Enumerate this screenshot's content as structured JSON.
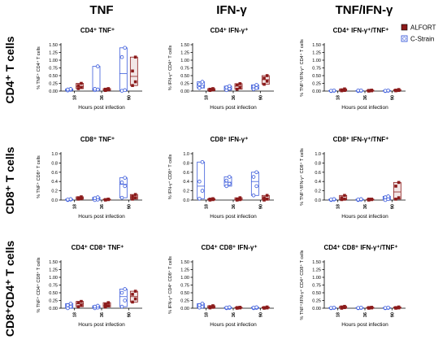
{
  "column_headers": [
    "TNF",
    "IFN-γ",
    "TNF/IFN-γ"
  ],
  "row_headers": [
    "CD4⁺ T cells",
    "CD8⁺ T cells",
    "CD8⁺CD4⁺ T cells"
  ],
  "legend": [
    {
      "label": "ALFORT",
      "color": "#8b1a1a"
    },
    {
      "label": "C-Strain",
      "color": "#3b5bdb"
    }
  ],
  "chart_data": [
    {
      "type": "box",
      "title": "CD4⁺ TNF⁺",
      "ylabel": "% TNF⁺ CD4⁺ T cells",
      "xlabel": "Hours post infection",
      "categories": [
        "18",
        "36",
        "90"
      ],
      "ylim": [
        0,
        1.5
      ],
      "yticks": [
        "0.00",
        "0.25",
        "0.50",
        "0.75",
        "1.00",
        "1.25",
        "1.50"
      ],
      "series": [
        {
          "name": "C-Strain",
          "values": [
            [
              0.02,
              0.04,
              0.05,
              0.07
            ],
            [
              0.03,
              0.05,
              0.07,
              0.8
            ],
            [
              0.01,
              0.03,
              1.1,
              1.4
            ]
          ]
        },
        {
          "name": "ALFORT",
          "values": [
            [
              0.08,
              0.12,
              0.18,
              0.25
            ],
            [
              0.02,
              0.04,
              0.06,
              0.08
            ],
            [
              0.18,
              0.3,
              0.65,
              1.1
            ]
          ]
        }
      ]
    },
    {
      "type": "box",
      "title": "CD4⁺ IFN-γ⁺",
      "ylabel": "% IFN-γ⁺ CD4⁺ T cells",
      "xlabel": "Hours post infection",
      "categories": [
        "18",
        "36",
        "90"
      ],
      "ylim": [
        0,
        1.5
      ],
      "yticks": [
        "0.00",
        "0.25",
        "0.50",
        "0.75",
        "1.00",
        "1.25",
        "1.50"
      ],
      "series": [
        {
          "name": "C-Strain",
          "values": [
            [
              0.1,
              0.15,
              0.22,
              0.3
            ],
            [
              0.03,
              0.08,
              0.12,
              0.16
            ],
            [
              0.06,
              0.1,
              0.15,
              0.2
            ]
          ]
        },
        {
          "name": "ALFORT",
          "values": [
            [
              0.02,
              0.04,
              0.06,
              0.08
            ],
            [
              0.06,
              0.12,
              0.2,
              0.24
            ],
            [
              0.22,
              0.32,
              0.42,
              0.5
            ]
          ]
        }
      ]
    },
    {
      "type": "box",
      "title": "CD4⁺ IFN-γ⁺/TNF⁺",
      "ylabel": "% TNF⁺/IFN-γ⁺ CD4⁺ T cells",
      "xlabel": "Hours post infection",
      "categories": [
        "18",
        "36",
        "90"
      ],
      "ylim": [
        0,
        1.5
      ],
      "yticks": [
        "0.00",
        "0.25",
        "0.50",
        "0.75",
        "1.00",
        "1.25",
        "1.50"
      ],
      "series": [
        {
          "name": "C-Strain",
          "values": [
            [
              0.0,
              0.01,
              0.01,
              0.02
            ],
            [
              0.0,
              0.01,
              0.02,
              0.02
            ],
            [
              0.0,
              0.01,
              0.01,
              0.02
            ]
          ]
        },
        {
          "name": "ALFORT",
          "values": [
            [
              0.01,
              0.02,
              0.04,
              0.07
            ],
            [
              0.0,
              0.01,
              0.02,
              0.03
            ],
            [
              0.01,
              0.02,
              0.03,
              0.05
            ]
          ]
        }
      ]
    },
    {
      "type": "box",
      "title": "CD8⁺ TNF⁺",
      "ylabel": "% TNF⁺ CD8⁺ T cells",
      "xlabel": "Hours post infection",
      "categories": [
        "18",
        "36",
        "90"
      ],
      "ylim": [
        0,
        1.0
      ],
      "yticks": [
        "0.0",
        "0.2",
        "0.4",
        "0.6",
        "0.8",
        "1.0"
      ],
      "series": [
        {
          "name": "C-Strain",
          "values": [
            [
              0.0,
              0.01,
              0.01,
              0.02
            ],
            [
              0.0,
              0.01,
              0.04,
              0.06
            ],
            [
              0.05,
              0.3,
              0.38,
              0.48
            ]
          ]
        },
        {
          "name": "ALFORT",
          "values": [
            [
              0.02,
              0.03,
              0.05,
              0.07
            ],
            [
              0.0,
              0.01,
              0.01,
              0.02
            ],
            [
              0.02,
              0.05,
              0.08,
              0.12
            ]
          ]
        }
      ]
    },
    {
      "type": "box",
      "title": "CD8⁺ IFN-γ⁺",
      "ylabel": "% IFN-γ⁺ CD8⁺ T cells",
      "xlabel": "Hours post infection",
      "categories": [
        "18",
        "36",
        "90"
      ],
      "ylim": [
        0,
        1.0
      ],
      "yticks": [
        "0.0",
        "0.2",
        "0.4",
        "0.6",
        "0.8",
        "1.0"
      ],
      "series": [
        {
          "name": "C-Strain",
          "values": [
            [
              0.03,
              0.2,
              0.4,
              0.82
            ],
            [
              0.3,
              0.35,
              0.42,
              0.5
            ],
            [
              0.1,
              0.3,
              0.5,
              0.6
            ]
          ]
        },
        {
          "name": "ALFORT",
          "values": [
            [
              0.0,
              0.01,
              0.02,
              0.03
            ],
            [
              0.0,
              0.01,
              0.02,
              0.05
            ],
            [
              0.0,
              0.02,
              0.05,
              0.1
            ]
          ]
        }
      ]
    },
    {
      "type": "box",
      "title": "CD8⁺ IFN-γ⁺/TNF⁺",
      "ylabel": "% TNF⁺/IFN-γ⁺ CD8⁺ T cells",
      "xlabel": "Hours post infection",
      "categories": [
        "18",
        "36",
        "90"
      ],
      "ylim": [
        0,
        1.0
      ],
      "yticks": [
        "0.0",
        "0.2",
        "0.4",
        "0.6",
        "0.8",
        "1.0"
      ],
      "series": [
        {
          "name": "C-Strain",
          "values": [
            [
              0.0,
              0.01,
              0.01,
              0.02
            ],
            [
              0.0,
              0.01,
              0.01,
              0.02
            ],
            [
              0.0,
              0.02,
              0.06,
              0.08
            ]
          ]
        },
        {
          "name": "ALFORT",
          "values": [
            [
              0.01,
              0.02,
              0.05,
              0.1
            ],
            [
              0.0,
              0.01,
              0.02,
              0.02
            ],
            [
              0.02,
              0.05,
              0.3,
              0.38
            ]
          ]
        }
      ]
    },
    {
      "type": "box",
      "title": "CD4⁺ CD8⁺ TNF⁺",
      "ylabel": "% TNF⁺ CD4⁺ CD8⁺ T cells",
      "xlabel": "Hours post infection",
      "categories": [
        "18",
        "36",
        "90"
      ],
      "ylim": [
        0,
        1.5
      ],
      "yticks": [
        "0.00",
        "0.25",
        "0.50",
        "0.75",
        "1.00",
        "1.25",
        "1.50"
      ],
      "series": [
        {
          "name": "C-Strain",
          "values": [
            [
              0.0,
              0.05,
              0.1,
              0.15
            ],
            [
              0.0,
              0.02,
              0.05,
              0.08
            ],
            [
              0.05,
              0.25,
              0.5,
              0.62
            ]
          ]
        },
        {
          "name": "ALFORT",
          "values": [
            [
              0.05,
              0.1,
              0.18,
              0.22
            ],
            [
              0.04,
              0.08,
              0.12,
              0.18
            ],
            [
              0.2,
              0.3,
              0.45,
              0.55
            ]
          ]
        }
      ]
    },
    {
      "type": "box",
      "title": "CD4⁺ CD8⁺ IFN-γ⁺",
      "ylabel": "% IFN-γ⁺ CD4⁺ CD8⁺ T cells",
      "xlabel": "Hours post infection",
      "categories": [
        "18",
        "36",
        "90"
      ],
      "ylim": [
        0,
        1.5
      ],
      "yticks": [
        "0.00",
        "0.25",
        "0.50",
        "0.75",
        "1.00",
        "1.25",
        "1.50"
      ],
      "series": [
        {
          "name": "C-Strain",
          "values": [
            [
              0.02,
              0.05,
              0.1,
              0.15
            ],
            [
              0.0,
              0.01,
              0.02,
              0.03
            ],
            [
              0.0,
              0.01,
              0.02,
              0.03
            ]
          ]
        },
        {
          "name": "ALFORT",
          "values": [
            [
              0.01,
              0.03,
              0.05,
              0.08
            ],
            [
              0.0,
              0.01,
              0.02,
              0.03
            ],
            [
              0.0,
              0.01,
              0.02,
              0.04
            ]
          ]
        }
      ]
    },
    {
      "type": "box",
      "title": "CD4⁺ CD8⁺  IFN-γ⁺/TNF⁺",
      "ylabel": "% TNF⁺/IFN-γ⁺ CD4⁺ CD8⁺ T cells",
      "xlabel": "Hours post infection",
      "categories": [
        "18",
        "36",
        "90"
      ],
      "ylim": [
        0,
        1.5
      ],
      "yticks": [
        "0.00",
        "0.25",
        "0.50",
        "0.75",
        "1.00",
        "1.25",
        "1.50"
      ],
      "series": [
        {
          "name": "C-Strain",
          "values": [
            [
              0.0,
              0.01,
              0.01,
              0.02
            ],
            [
              0.0,
              0.01,
              0.01,
              0.02
            ],
            [
              0.0,
              0.01,
              0.01,
              0.02
            ]
          ]
        },
        {
          "name": "ALFORT",
          "values": [
            [
              0.0,
              0.02,
              0.04,
              0.06
            ],
            [
              0.0,
              0.01,
              0.02,
              0.03
            ],
            [
              0.0,
              0.01,
              0.02,
              0.04
            ]
          ]
        }
      ]
    }
  ]
}
